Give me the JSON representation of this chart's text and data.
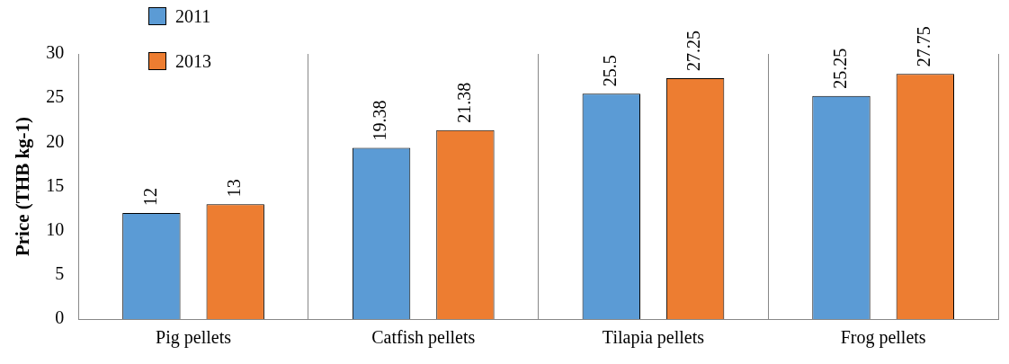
{
  "chart_data": {
    "type": "bar",
    "ylabel": "Price (THB kg-1)",
    "categories": [
      "Pig pellets",
      "Catfish pellets",
      "Tilapia pellets",
      "Frog pellets"
    ],
    "series": [
      {
        "name": "2011",
        "color": "#5b9bd5",
        "values": [
          12,
          19.38,
          25.5,
          25.25
        ]
      },
      {
        "name": "2013",
        "color": "#ed7d31",
        "values": [
          13,
          21.38,
          27.25,
          27.75
        ]
      }
    ],
    "ylim": [
      0,
      30
    ],
    "yticks": [
      0,
      5,
      10,
      15,
      20,
      25,
      30
    ],
    "grid": "x",
    "legend": "top left",
    "data_labels": true
  }
}
